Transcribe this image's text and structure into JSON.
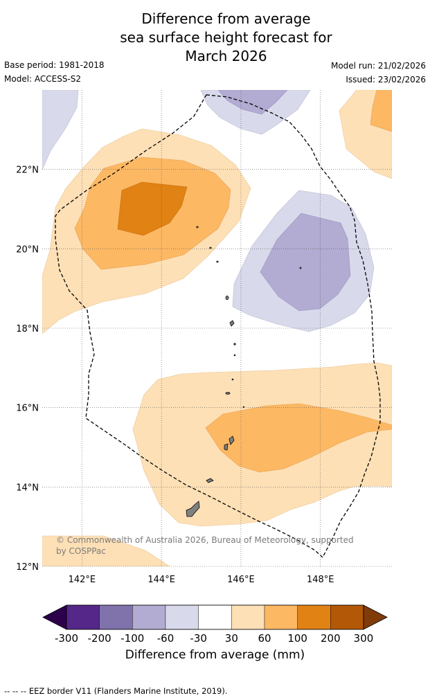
{
  "title": {
    "line1": "Difference from average",
    "line2": "sea surface height forecast for",
    "line3": "March 2026"
  },
  "meta": {
    "base_period": "Base period: 1981-2018",
    "model": "Model: ACCESS-S2",
    "model_run": "Model run: 21/02/2026",
    "issued": "Issued: 23/02/2026"
  },
  "map": {
    "lon_range": [
      141,
      149.8
    ],
    "lat_range": [
      12,
      24
    ],
    "lat_labels": [
      "22°N",
      "20°N",
      "18°N",
      "16°N",
      "14°N",
      "12°N"
    ],
    "lon_labels": [
      "142°E",
      "144°E",
      "146°E",
      "148°E"
    ],
    "gridlines": true,
    "copyright": "© Commonwealth of Australia 2026, Bureau of Meteorology, supported by COSPPac",
    "colors": {
      "pos_30_60": "#fee0b6",
      "pos_60_100": "#fdb863",
      "pos_100_200": "#e08214",
      "neg_m30_m60": "#d8daeb",
      "neg_m60_m100": "#b2abd2",
      "land": "#808080"
    }
  },
  "colorbar": {
    "tick_labels": [
      "-300",
      "-200",
      "-100",
      "-60",
      "-30",
      "30",
      "60",
      "100",
      "200",
      "300"
    ],
    "colors": [
      "#2d004b",
      "#542788",
      "#8073ac",
      "#b2abd2",
      "#d8daeb",
      "#ffffff",
      "#fee0b6",
      "#fdb863",
      "#e08214",
      "#b35806",
      "#7f3b08"
    ],
    "label": "Difference from average (mm)"
  },
  "footer": "--  --  -- EEZ border V11 (Flanders Marine Institute, 2019)."
}
